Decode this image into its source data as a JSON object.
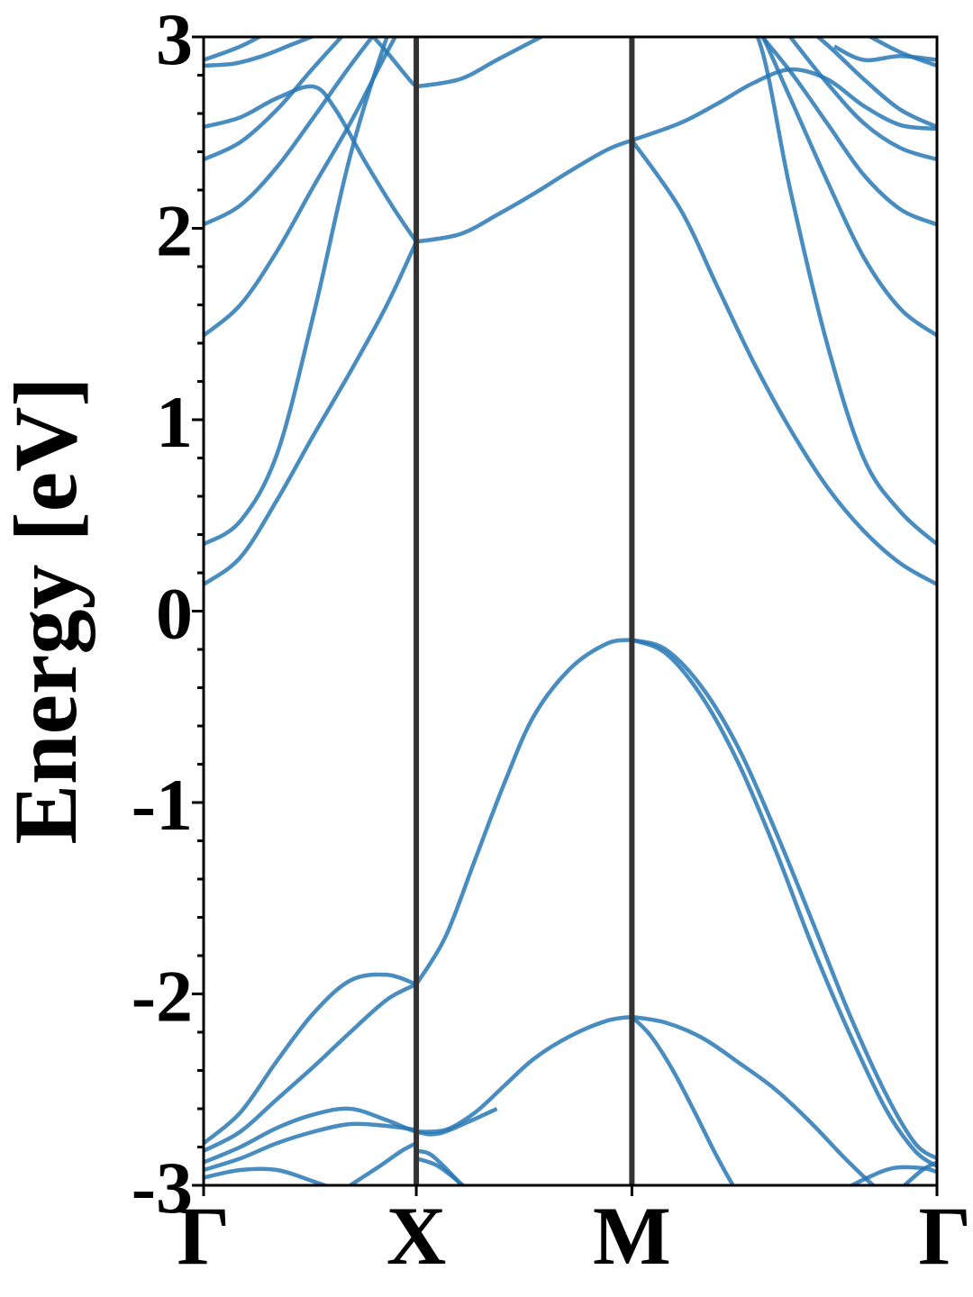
{
  "chart_data": {
    "type": "line",
    "ylabel": "Energy [eV]",
    "xlabel": "",
    "ylim": [
      -3,
      3
    ],
    "yticks": [
      -3,
      -2,
      -1,
      0,
      1,
      2,
      3
    ],
    "ytick_labels": [
      "-3",
      "-2",
      "-1",
      "0",
      "1",
      "2",
      "3"
    ],
    "y_minor_step": 0.2,
    "kpath": [
      {
        "label": "Γ",
        "pos": 0.0
      },
      {
        "label": "X",
        "pos": 0.29
      },
      {
        "label": "M",
        "pos": 0.584
      },
      {
        "label": "Γ",
        "pos": 1.0
      }
    ],
    "line_color": "#2878b5",
    "divider_color": "#333333",
    "grid": false,
    "legend": "none",
    "series": [
      {
        "x": [
          0,
          0.05,
          0.1,
          0.15,
          0.2,
          0.25,
          0.29
        ],
        "values": [
          0.14,
          0.28,
          0.58,
          0.92,
          1.25,
          1.6,
          1.93
        ]
      },
      {
        "x": [
          0.29,
          0.35,
          0.4,
          0.45,
          0.5,
          0.55,
          0.584
        ],
        "values": [
          1.93,
          1.97,
          2.07,
          2.18,
          2.3,
          2.41,
          2.46
        ]
      },
      {
        "x": [
          0.584,
          0.65,
          0.7,
          0.75,
          0.8,
          0.85,
          0.9,
          0.95,
          1.0
        ],
        "values": [
          2.46,
          2.1,
          1.7,
          1.3,
          0.95,
          0.65,
          0.42,
          0.25,
          0.14
        ]
      },
      {
        "x": [
          0,
          0.05,
          0.1,
          0.15,
          0.2,
          0.25,
          0.29
        ],
        "values": [
          0.35,
          0.47,
          0.82,
          1.55,
          2.38,
          3.0,
          3.4
        ]
      },
      {
        "x": [
          0.584,
          0.65,
          0.7,
          0.75,
          0.8,
          0.85,
          0.9,
          0.95,
          1.0
        ],
        "values": [
          2.46,
          2.55,
          2.65,
          2.76,
          2.83,
          2.78,
          2.64,
          2.54,
          2.52
        ]
      },
      {
        "x": [
          0.72,
          0.76,
          0.8,
          0.85,
          0.9,
          0.95,
          1.0
        ],
        "values": [
          3.2,
          2.95,
          2.2,
          1.4,
          0.8,
          0.52,
          0.35
        ]
      },
      {
        "x": [
          0,
          0.05,
          0.1,
          0.15,
          0.2,
          0.25,
          0.29
        ],
        "values": [
          1.44,
          1.6,
          1.88,
          2.22,
          2.55,
          2.92,
          3.2
        ]
      },
      {
        "x": [
          0.7,
          0.75,
          0.8,
          0.85,
          0.9,
          0.95,
          1.0
        ],
        "values": [
          3.4,
          3.1,
          2.68,
          2.25,
          1.85,
          1.58,
          1.44
        ]
      },
      {
        "x": [
          0,
          0.05,
          0.1,
          0.15,
          0.2,
          0.25
        ],
        "values": [
          2.02,
          2.12,
          2.32,
          2.58,
          2.85,
          3.1
        ]
      },
      {
        "x": [
          0.74,
          0.8,
          0.85,
          0.9,
          0.95,
          1.0
        ],
        "values": [
          3.1,
          2.82,
          2.55,
          2.28,
          2.1,
          2.02
        ]
      },
      {
        "x": [
          0,
          0.05,
          0.1,
          0.15,
          0.2,
          0.25
        ],
        "values": [
          2.36,
          2.45,
          2.62,
          2.84,
          3.05,
          3.25
        ]
      },
      {
        "x": [
          0.76,
          0.8,
          0.85,
          0.9,
          0.95,
          1.0
        ],
        "values": [
          3.2,
          3.0,
          2.76,
          2.55,
          2.42,
          2.36
        ]
      },
      {
        "x": [
          0,
          0.05,
          0.1,
          0.15,
          0.18,
          0.22,
          0.26,
          0.29
        ],
        "values": [
          2.53,
          2.58,
          2.68,
          2.74,
          2.62,
          2.35,
          2.1,
          1.93
        ]
      },
      {
        "x": [
          0.29,
          0.35,
          0.4,
          0.45,
          0.5
        ],
        "values": [
          2.74,
          2.78,
          2.88,
          2.98,
          3.08
        ]
      },
      {
        "x": [
          0.22,
          0.25,
          0.28,
          0.29
        ],
        "values": [
          3.05,
          2.92,
          2.78,
          2.74
        ]
      },
      {
        "x": [
          0,
          0.05,
          0.1,
          0.15,
          0.2
        ],
        "values": [
          2.88,
          2.95,
          3.05,
          3.15,
          3.25
        ]
      },
      {
        "x": [
          0.79,
          0.85,
          0.9,
          0.95,
          1.0
        ],
        "values": [
          3.15,
          2.96,
          2.78,
          2.62,
          2.53
        ]
      },
      {
        "x": [
          0.86,
          0.9,
          0.95,
          1.0
        ],
        "values": [
          2.95,
          2.88,
          2.9,
          2.88
        ]
      },
      {
        "x": [
          0,
          0.04,
          0.08,
          0.12,
          0.16
        ],
        "values": [
          2.85,
          2.86,
          2.9,
          2.96,
          3.02
        ]
      },
      {
        "x": [
          0.9,
          0.95,
          1.0
        ],
        "values": [
          3.02,
          2.92,
          2.85
        ]
      },
      {
        "x": [
          0.29,
          0.33,
          0.37,
          0.41,
          0.45,
          0.5,
          0.55,
          0.584
        ],
        "values": [
          -1.95,
          -1.7,
          -1.3,
          -0.9,
          -0.55,
          -0.3,
          -0.17,
          -0.15
        ]
      },
      {
        "x": [
          0.584,
          0.63,
          0.68,
          0.73,
          0.78,
          0.83,
          0.88,
          0.93,
          0.97,
          1.0
        ],
        "values": [
          -0.15,
          -0.22,
          -0.45,
          -0.8,
          -1.25,
          -1.75,
          -2.2,
          -2.6,
          -2.82,
          -2.9
        ]
      },
      {
        "x": [
          0.584,
          0.63,
          0.68,
          0.73,
          0.78,
          0.83,
          0.88,
          0.93,
          0.97,
          1.0
        ],
        "values": [
          -0.15,
          -0.2,
          -0.4,
          -0.72,
          -1.15,
          -1.62,
          -2.1,
          -2.52,
          -2.78,
          -2.86
        ]
      },
      {
        "x": [
          0.29,
          0.33,
          0.37,
          0.41,
          0.45,
          0.5,
          0.55,
          0.584
        ],
        "values": [
          -2.72,
          -2.71,
          -2.62,
          -2.48,
          -2.34,
          -2.22,
          -2.14,
          -2.12
        ]
      },
      {
        "x": [
          0.584,
          0.63,
          0.68,
          0.73,
          0.78,
          0.83,
          0.88,
          0.93,
          0.97,
          1.0
        ],
        "values": [
          -2.12,
          -2.15,
          -2.23,
          -2.36,
          -2.5,
          -2.68,
          -2.88,
          -3.05,
          -3.1,
          -3.12
        ]
      },
      {
        "x": [
          0.584,
          0.61,
          0.64,
          0.67,
          0.7,
          0.73,
          0.76
        ],
        "values": [
          -2.12,
          -2.22,
          -2.4,
          -2.62,
          -2.85,
          -3.05,
          -3.2
        ]
      },
      {
        "x": [
          0,
          0.05,
          0.1,
          0.15,
          0.2,
          0.25,
          0.29
        ],
        "values": [
          -2.78,
          -2.62,
          -2.35,
          -2.1,
          -1.93,
          -1.9,
          -1.95
        ]
      },
      {
        "x": [
          0,
          0.05,
          0.1,
          0.15,
          0.2,
          0.25,
          0.29
        ],
        "values": [
          -2.82,
          -2.72,
          -2.55,
          -2.38,
          -2.2,
          -2.03,
          -1.95
        ]
      },
      {
        "x": [
          0,
          0.05,
          0.1,
          0.15,
          0.2,
          0.25,
          0.29,
          0.32,
          0.36,
          0.4
        ],
        "values": [
          -2.88,
          -2.8,
          -2.7,
          -2.63,
          -2.6,
          -2.66,
          -2.72,
          -2.73,
          -2.67,
          -2.6
        ]
      },
      {
        "x": [
          0,
          0.05,
          0.1,
          0.15,
          0.2,
          0.25,
          0.29
        ],
        "values": [
          -2.92,
          -2.86,
          -2.78,
          -2.72,
          -2.68,
          -2.69,
          -2.71
        ]
      },
      {
        "x": [
          0.2,
          0.24,
          0.27,
          0.29
        ],
        "values": [
          -3.0,
          -2.9,
          -2.82,
          -2.78
        ]
      },
      {
        "x": [
          0,
          0.05,
          0.1,
          0.15,
          0.2
        ],
        "values": [
          -2.96,
          -2.92,
          -2.92,
          -2.98,
          -3.05
        ]
      },
      {
        "x": [
          0.29,
          0.31,
          0.34,
          0.37
        ],
        "values": [
          -2.82,
          -2.84,
          -2.95,
          -3.08
        ]
      },
      {
        "x": [
          0.29,
          0.32,
          0.36
        ],
        "values": [
          -2.86,
          -2.9,
          -3.02
        ]
      },
      {
        "x": [
          0.86,
          0.9,
          0.94,
          0.98,
          1.0
        ],
        "values": [
          -3.05,
          -2.97,
          -2.91,
          -2.91,
          -2.93
        ]
      },
      {
        "x": [
          0.95,
          0.98,
          1.0
        ],
        "values": [
          -3.02,
          -2.92,
          -2.88
        ]
      }
    ]
  }
}
